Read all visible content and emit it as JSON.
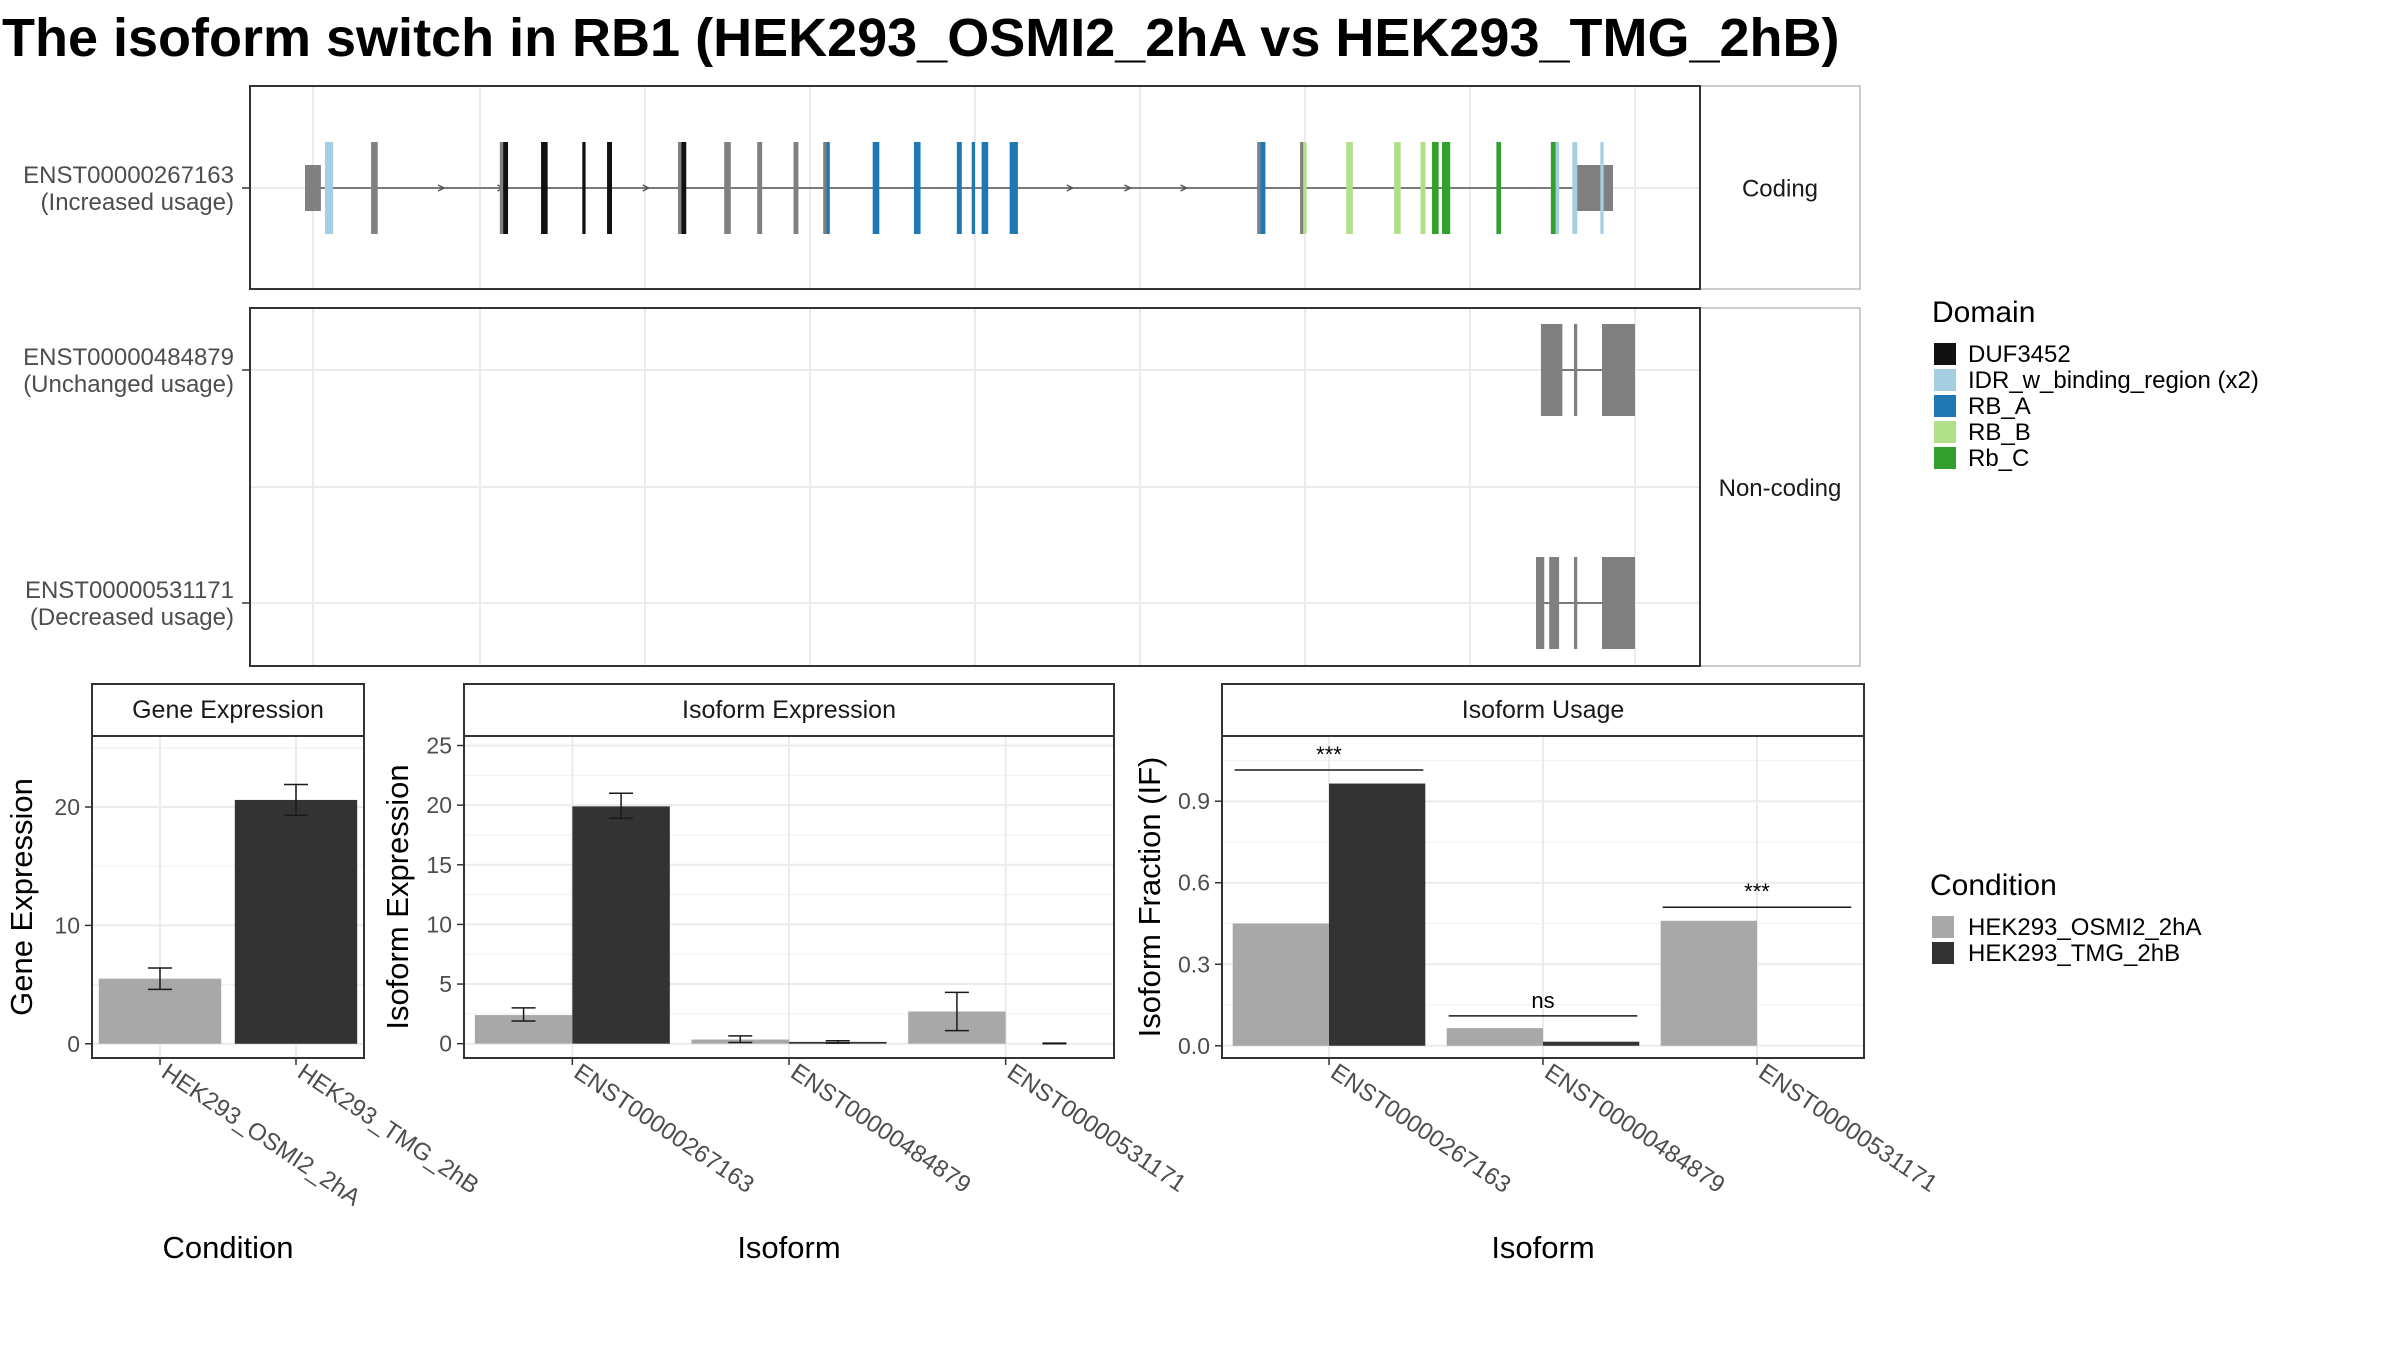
{
  "title": "The isoform switch in RB1 (HEK293_OSMI2_2hA vs HEK293_TMG_2hB)",
  "colors": {
    "intron": "#555555",
    "exon_gray": "#808080",
    "cond_a": "#A8A8A8",
    "cond_b": "#333333",
    "panel_border": "#333333",
    "strip_fill": "#FFFFFF",
    "grid": "#EBEBEB"
  },
  "structure": {
    "facets": [
      "Coding",
      "Non-coding"
    ],
    "domain_legend": {
      "title": "Domain",
      "items": [
        {
          "label": "DUF3452",
          "color": "#111111"
        },
        {
          "label": "IDR_w_binding_region (x2)",
          "color": "#A6CEE3"
        },
        {
          "label": "RB_A",
          "color": "#1F78B4"
        },
        {
          "label": "RB_B",
          "color": "#B2DF8A"
        },
        {
          "label": "Rb_C",
          "color": "#33A02C"
        }
      ]
    },
    "isoforms": [
      {
        "id": "ENST00000267163",
        "usage_label": "(Increased usage)",
        "facet": "Coding",
        "span": [
          0.0,
          780.0
        ],
        "utr5": [
          0.0,
          6.0
        ],
        "utr3": [
          763.0,
          780.0
        ],
        "strand_arrows": [
          77,
          113,
          201,
          458,
          493,
          527
        ],
        "exons": [
          {
            "start": 6,
            "end": 11,
            "domain": "IDR_w_binding_region (x2)",
            "tall": true
          },
          {
            "start": 34,
            "end": 38,
            "domain": "",
            "tall": true
          },
          {
            "start": 112,
            "end": 114,
            "domain": "",
            "tall": true
          },
          {
            "start": 114,
            "end": 117,
            "domain": "DUF3452",
            "tall": true
          },
          {
            "start": 137,
            "end": 141,
            "domain": "DUF3452",
            "tall": true
          },
          {
            "start": 162,
            "end": 164,
            "domain": "DUF3452",
            "tall": true
          },
          {
            "start": 177,
            "end": 180,
            "domain": "DUF3452",
            "tall": true
          },
          {
            "start": 220,
            "end": 222,
            "domain": "",
            "tall": true
          },
          {
            "start": 222,
            "end": 225,
            "domain": "DUF3452",
            "tall": true
          },
          {
            "start": 248,
            "end": 252,
            "domain": "",
            "tall": true
          },
          {
            "start": 268,
            "end": 271,
            "domain": "",
            "tall": true
          },
          {
            "start": 290,
            "end": 293,
            "domain": "",
            "tall": true
          },
          {
            "start": 308,
            "end": 310,
            "domain": "",
            "tall": true
          },
          {
            "start": 310,
            "end": 312,
            "domain": "RB_A",
            "tall": true
          },
          {
            "start": 338,
            "end": 342,
            "domain": "RB_A",
            "tall": true
          },
          {
            "start": 363,
            "end": 367,
            "domain": "RB_A",
            "tall": true
          },
          {
            "start": 389,
            "end": 392,
            "domain": "RB_A",
            "tall": true
          },
          {
            "start": 398,
            "end": 400,
            "domain": "RB_A",
            "tall": true
          },
          {
            "start": 404,
            "end": 408,
            "domain": "RB_A",
            "tall": true
          },
          {
            "start": 421,
            "end": 426,
            "domain": "RB_A",
            "tall": true
          },
          {
            "start": 571,
            "end": 573,
            "domain": "",
            "tall": true
          },
          {
            "start": 573,
            "end": 576,
            "domain": "RB_A",
            "tall": true
          },
          {
            "start": 597,
            "end": 599,
            "domain": "",
            "tall": true
          },
          {
            "start": 599,
            "end": 601,
            "domain": "RB_B",
            "tall": true
          },
          {
            "start": 625,
            "end": 629,
            "domain": "RB_B",
            "tall": true
          },
          {
            "start": 654,
            "end": 658,
            "domain": "RB_B",
            "tall": true
          },
          {
            "start": 670,
            "end": 673,
            "domain": "RB_B",
            "tall": true
          },
          {
            "start": 677,
            "end": 681,
            "domain": "Rb_C",
            "tall": true
          },
          {
            "start": 683,
            "end": 688,
            "domain": "Rb_C",
            "tall": true
          },
          {
            "start": 716,
            "end": 718,
            "domain": "Rb_C",
            "tall": true
          },
          {
            "start": 717,
            "end": 718,
            "domain": "Rb_C",
            "tall": true
          },
          {
            "start": 749,
            "end": 752,
            "domain": "Rb_C",
            "tall": true
          },
          {
            "start": 752,
            "end": 754,
            "domain": "IDR_w_binding_region (x2)",
            "tall": true
          },
          {
            "start": 762,
            "end": 765,
            "domain": "IDR_w_binding_region (x2)",
            "tall": true
          },
          {
            "start": 779,
            "end": 781,
            "domain": "IDR_w_binding_region (x2)",
            "tall": true
          }
        ]
      },
      {
        "id": "ENST00000484879",
        "usage_label": "(Unchanged usage)",
        "facet": "Non-coding",
        "span": [
          743.0,
          780.0
        ],
        "exons": [
          {
            "start": 743,
            "end": 756,
            "domain": "",
            "tall": true
          },
          {
            "start": 763,
            "end": 765,
            "domain": "",
            "tall": true
          },
          {
            "start": 780,
            "end": 800,
            "domain": "",
            "tall": true
          }
        ]
      },
      {
        "id": "ENST00000531171",
        "usage_label": "(Decreased usage)",
        "facet": "Non-coding",
        "span": [
          740.0,
          780.0
        ],
        "exons": [
          {
            "start": 740,
            "end": 745,
            "domain": "",
            "tall": true
          },
          {
            "start": 748,
            "end": 754,
            "domain": "",
            "tall": true
          },
          {
            "start": 763,
            "end": 765,
            "domain": "",
            "tall": true
          },
          {
            "start": 780,
            "end": 800,
            "domain": "",
            "tall": true
          }
        ]
      }
    ]
  },
  "chart_data": [
    {
      "type": "bar",
      "strip": "Gene Expression",
      "xlabel": "Condition",
      "ylabel": "Gene Expression",
      "ylim": [
        -1.2,
        26
      ],
      "yticks": [
        0,
        10,
        20
      ],
      "categories": [
        "HEK293_OSMI2_2hA",
        "HEK293_TMG_2hB"
      ],
      "values": [
        5.5,
        20.6
      ],
      "error_low": [
        4.6,
        19.3
      ],
      "error_high": [
        6.4,
        21.9
      ],
      "colors": [
        "#A8A8A8",
        "#333333"
      ]
    },
    {
      "type": "bar",
      "strip": "Isoform Expression",
      "xlabel": "Isoform",
      "ylabel": "Isoform Expression",
      "ylim": [
        -1.2,
        25.8
      ],
      "yticks": [
        0,
        5,
        10,
        15,
        20,
        25
      ],
      "categories": [
        "ENST00000267163",
        "ENST00000484879",
        "ENST00000531171"
      ],
      "series": [
        {
          "name": "HEK293_OSMI2_2hA",
          "color": "#A8A8A8",
          "values": [
            2.4,
            0.35,
            2.7
          ],
          "error_low": [
            1.9,
            0.1,
            1.1
          ],
          "error_high": [
            3.0,
            0.65,
            4.3
          ]
        },
        {
          "name": "HEK293_TMG_2hB",
          "color": "#333333",
          "values": [
            19.9,
            0.15,
            0.0
          ],
          "error_low": [
            18.9,
            0.05,
            0.0
          ],
          "error_high": [
            21.0,
            0.25,
            0.05
          ]
        }
      ]
    },
    {
      "type": "bar",
      "strip": "Isoform Usage",
      "xlabel": "Isoform",
      "ylabel": "Isoform Fraction (IF)",
      "ylim": [
        -0.045,
        1.14
      ],
      "yticks": [
        "0.0",
        "0.3",
        "0.6",
        "0.9"
      ],
      "categories": [
        "ENST00000267163",
        "ENST00000484879",
        "ENST00000531171"
      ],
      "series": [
        {
          "name": "HEK293_OSMI2_2hA",
          "color": "#A8A8A8",
          "values": [
            0.45,
            0.065,
            0.46
          ]
        },
        {
          "name": "HEK293_TMG_2hB",
          "color": "#333333",
          "values": [
            0.965,
            0.015,
            0.0
          ]
        }
      ],
      "annotations": [
        {
          "category": "ENST00000267163",
          "text": "***",
          "y": 1.015
        },
        {
          "category": "ENST00000484879",
          "text": "ns",
          "y": 0.11
        },
        {
          "category": "ENST00000531171",
          "text": "***",
          "y": 0.51
        }
      ]
    }
  ],
  "condition_legend": {
    "title": "Condition",
    "items": [
      {
        "label": "HEK293_OSMI2_2hA",
        "color": "#A8A8A8"
      },
      {
        "label": "HEK293_TMG_2hB",
        "color": "#333333"
      }
    ]
  }
}
